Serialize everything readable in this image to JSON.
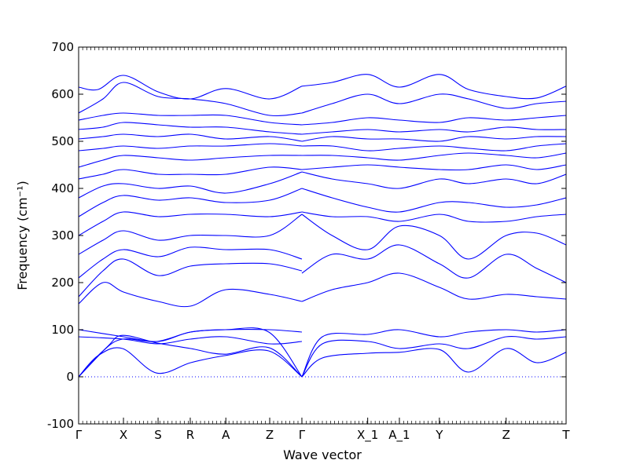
{
  "chart_data": {
    "type": "line",
    "xlabel": "Wave vector",
    "ylabel": "Frequency (cm⁻¹)",
    "ylim": [
      -100,
      700
    ],
    "yticks": [
      -100,
      0,
      100,
      200,
      300,
      400,
      500,
      600,
      700
    ],
    "high_symmetry_points": [
      {
        "label": "Γ",
        "k": 0.0
      },
      {
        "label": "X",
        "k": 0.092
      },
      {
        "label": "S",
        "k": 0.163
      },
      {
        "label": "R",
        "k": 0.229
      },
      {
        "label": "A",
        "k": 0.302
      },
      {
        "label": "Z",
        "k": 0.392
      },
      {
        "label": "Γ",
        "k": 0.458
      },
      {
        "label": "X_1",
        "k": 0.593
      },
      {
        "label": "A_1",
        "k": 0.658
      },
      {
        "label": "Y",
        "k": 0.74
      },
      {
        "label": "Z",
        "k": 0.877
      },
      {
        "label": "T",
        "k": 1.0
      }
    ],
    "zero_line": true,
    "line_color": "#0000ff",
    "series": [
      {
        "k": [
          0,
          0.04,
          0.09,
          0.16,
          0.23,
          0.3,
          0.39,
          0.458
        ],
        "freq": [
          0,
          45,
          60,
          8,
          30,
          45,
          55,
          0
        ]
      },
      {
        "k": [
          0,
          0.05,
          0.09,
          0.16,
          0.23,
          0.3,
          0.39,
          0.458
        ],
        "freq": [
          0,
          55,
          80,
          75,
          95,
          100,
          95,
          0
        ]
      },
      {
        "k": [
          0,
          0.06,
          0.09,
          0.16,
          0.23,
          0.3,
          0.39,
          0.458
        ],
        "freq": [
          0,
          65,
          88,
          72,
          60,
          48,
          62,
          0
        ]
      },
      {
        "k": [
          0.458,
          0.5,
          0.593,
          0.658,
          0.74,
          0.8,
          0.877,
          0.94,
          1.0
        ],
        "freq": [
          0,
          40,
          50,
          52,
          58,
          10,
          60,
          30,
          52
        ]
      },
      {
        "k": [
          0.458,
          0.5,
          0.593,
          0.658,
          0.74,
          0.8,
          0.877,
          0.94,
          1.0
        ],
        "freq": [
          0,
          70,
          75,
          60,
          70,
          60,
          85,
          80,
          85
        ]
      },
      {
        "k": [
          0.458,
          0.5,
          0.593,
          0.658,
          0.74,
          0.8,
          0.877,
          0.94,
          1.0
        ],
        "freq": [
          0,
          85,
          90,
          100,
          85,
          95,
          100,
          95,
          100
        ]
      },
      {
        "k": [
          0,
          0.092,
          0.163,
          0.229,
          0.302,
          0.392,
          0.458
        ],
        "freq": [
          100,
          85,
          75,
          95,
          100,
          100,
          95
        ]
      },
      {
        "k": [
          0,
          0.092,
          0.163,
          0.229,
          0.302,
          0.392,
          0.458
        ],
        "freq": [
          85,
          80,
          70,
          80,
          85,
          70,
          75
        ]
      },
      {
        "k": [
          0,
          0.05,
          0.092,
          0.163,
          0.229,
          0.302,
          0.392,
          0.458
        ],
        "freq": [
          155,
          200,
          180,
          160,
          150,
          185,
          175,
          160
        ]
      },
      {
        "k": [
          0,
          0.05,
          0.092,
          0.163,
          0.229,
          0.302,
          0.392,
          0.458
        ],
        "freq": [
          170,
          225,
          250,
          215,
          235,
          240,
          240,
          225
        ]
      },
      {
        "k": [
          0,
          0.05,
          0.092,
          0.163,
          0.229,
          0.302,
          0.392,
          0.458
        ],
        "freq": [
          210,
          250,
          270,
          255,
          275,
          270,
          270,
          250
        ]
      },
      {
        "k": [
          0,
          0.05,
          0.092,
          0.163,
          0.229,
          0.302,
          0.392,
          0.458
        ],
        "freq": [
          260,
          290,
          310,
          290,
          300,
          300,
          300,
          345
        ]
      },
      {
        "k": [
          0,
          0.05,
          0.092,
          0.163,
          0.229,
          0.302,
          0.392,
          0.458
        ],
        "freq": [
          300,
          330,
          350,
          340,
          345,
          345,
          340,
          350
        ]
      },
      {
        "k": [
          0,
          0.05,
          0.092,
          0.163,
          0.229,
          0.302,
          0.392,
          0.458
        ],
        "freq": [
          340,
          370,
          385,
          375,
          380,
          370,
          375,
          400
        ]
      },
      {
        "k": [
          0,
          0.05,
          0.092,
          0.163,
          0.229,
          0.302,
          0.392,
          0.458
        ],
        "freq": [
          380,
          405,
          410,
          400,
          405,
          390,
          410,
          435
        ]
      },
      {
        "k": [
          0,
          0.05,
          0.092,
          0.163,
          0.229,
          0.302,
          0.392,
          0.458
        ],
        "freq": [
          420,
          430,
          440,
          430,
          430,
          430,
          445,
          440
        ]
      },
      {
        "k": [
          0,
          0.05,
          0.092,
          0.163,
          0.229,
          0.302,
          0.392,
          0.458
        ],
        "freq": [
          445,
          460,
          470,
          465,
          460,
          465,
          470,
          470
        ]
      },
      {
        "k": [
          0,
          0.05,
          0.092,
          0.163,
          0.229,
          0.302,
          0.392,
          0.458
        ],
        "freq": [
          480,
          485,
          490,
          485,
          490,
          490,
          495,
          490
        ]
      },
      {
        "k": [
          0,
          0.05,
          0.092,
          0.163,
          0.229,
          0.302,
          0.392,
          0.458
        ],
        "freq": [
          505,
          510,
          515,
          510,
          515,
          505,
          510,
          500
        ]
      },
      {
        "k": [
          0,
          0.05,
          0.092,
          0.163,
          0.229,
          0.302,
          0.392,
          0.458
        ],
        "freq": [
          525,
          530,
          540,
          535,
          530,
          530,
          520,
          515
        ]
      },
      {
        "k": [
          0,
          0.05,
          0.092,
          0.163,
          0.229,
          0.302,
          0.392,
          0.458
        ],
        "freq": [
          545,
          555,
          560,
          555,
          555,
          555,
          540,
          535
        ]
      },
      {
        "k": [
          0,
          0.05,
          0.092,
          0.163,
          0.229,
          0.302,
          0.392,
          0.458
        ],
        "freq": [
          560,
          590,
          625,
          595,
          590,
          580,
          555,
          560
        ]
      },
      {
        "k": [
          0,
          0.04,
          0.092,
          0.163,
          0.229,
          0.302,
          0.392,
          0.458
        ],
        "freq": [
          615,
          610,
          640,
          605,
          590,
          612,
          590,
          617
        ]
      },
      {
        "k": [
          0.458,
          0.52,
          0.593,
          0.658,
          0.74,
          0.8,
          0.877,
          0.94,
          1.0
        ],
        "freq": [
          160,
          185,
          200,
          220,
          190,
          165,
          175,
          170,
          165
        ]
      },
      {
        "k": [
          0.458,
          0.52,
          0.593,
          0.658,
          0.74,
          0.8,
          0.877,
          0.94,
          1.0
        ],
        "freq": [
          220,
          260,
          250,
          280,
          240,
          210,
          260,
          230,
          200
        ]
      },
      {
        "k": [
          0.458,
          0.52,
          0.593,
          0.658,
          0.74,
          0.8,
          0.877,
          0.94,
          1.0
        ],
        "freq": [
          345,
          300,
          270,
          320,
          300,
          250,
          300,
          305,
          280
        ]
      },
      {
        "k": [
          0.458,
          0.52,
          0.593,
          0.658,
          0.74,
          0.8,
          0.877,
          0.94,
          1.0
        ],
        "freq": [
          350,
          340,
          340,
          330,
          345,
          330,
          330,
          340,
          345
        ]
      },
      {
        "k": [
          0.458,
          0.52,
          0.593,
          0.658,
          0.74,
          0.8,
          0.877,
          0.94,
          1.0
        ],
        "freq": [
          400,
          380,
          360,
          350,
          370,
          370,
          360,
          365,
          380
        ]
      },
      {
        "k": [
          0.458,
          0.52,
          0.593,
          0.658,
          0.74,
          0.8,
          0.877,
          0.94,
          1.0
        ],
        "freq": [
          435,
          420,
          410,
          400,
          420,
          410,
          420,
          410,
          430
        ]
      },
      {
        "k": [
          0.458,
          0.52,
          0.593,
          0.658,
          0.74,
          0.8,
          0.877,
          0.94,
          1.0
        ],
        "freq": [
          440,
          445,
          450,
          445,
          440,
          440,
          450,
          440,
          450
        ]
      },
      {
        "k": [
          0.458,
          0.52,
          0.593,
          0.658,
          0.74,
          0.8,
          0.877,
          0.94,
          1.0
        ],
        "freq": [
          470,
          470,
          465,
          460,
          470,
          475,
          470,
          465,
          475
        ]
      },
      {
        "k": [
          0.458,
          0.52,
          0.593,
          0.658,
          0.74,
          0.8,
          0.877,
          0.94,
          1.0
        ],
        "freq": [
          490,
          490,
          480,
          485,
          490,
          485,
          480,
          490,
          495
        ]
      },
      {
        "k": [
          0.458,
          0.52,
          0.593,
          0.658,
          0.74,
          0.8,
          0.877,
          0.94,
          1.0
        ],
        "freq": [
          500,
          510,
          505,
          505,
          500,
          510,
          505,
          510,
          510
        ]
      },
      {
        "k": [
          0.458,
          0.52,
          0.593,
          0.658,
          0.74,
          0.8,
          0.877,
          0.94,
          1.0
        ],
        "freq": [
          515,
          520,
          525,
          520,
          525,
          520,
          530,
          525,
          525
        ]
      },
      {
        "k": [
          0.458,
          0.52,
          0.593,
          0.658,
          0.74,
          0.8,
          0.877,
          0.94,
          1.0
        ],
        "freq": [
          535,
          540,
          550,
          545,
          540,
          550,
          545,
          550,
          555
        ]
      },
      {
        "k": [
          0.458,
          0.52,
          0.593,
          0.658,
          0.74,
          0.8,
          0.877,
          0.94,
          1.0
        ],
        "freq": [
          560,
          580,
          600,
          580,
          600,
          590,
          570,
          580,
          585
        ]
      },
      {
        "k": [
          0.458,
          0.52,
          0.593,
          0.658,
          0.74,
          0.8,
          0.877,
          0.94,
          1.0
        ],
        "freq": [
          617,
          625,
          642,
          615,
          642,
          610,
          595,
          592,
          617
        ]
      }
    ]
  }
}
